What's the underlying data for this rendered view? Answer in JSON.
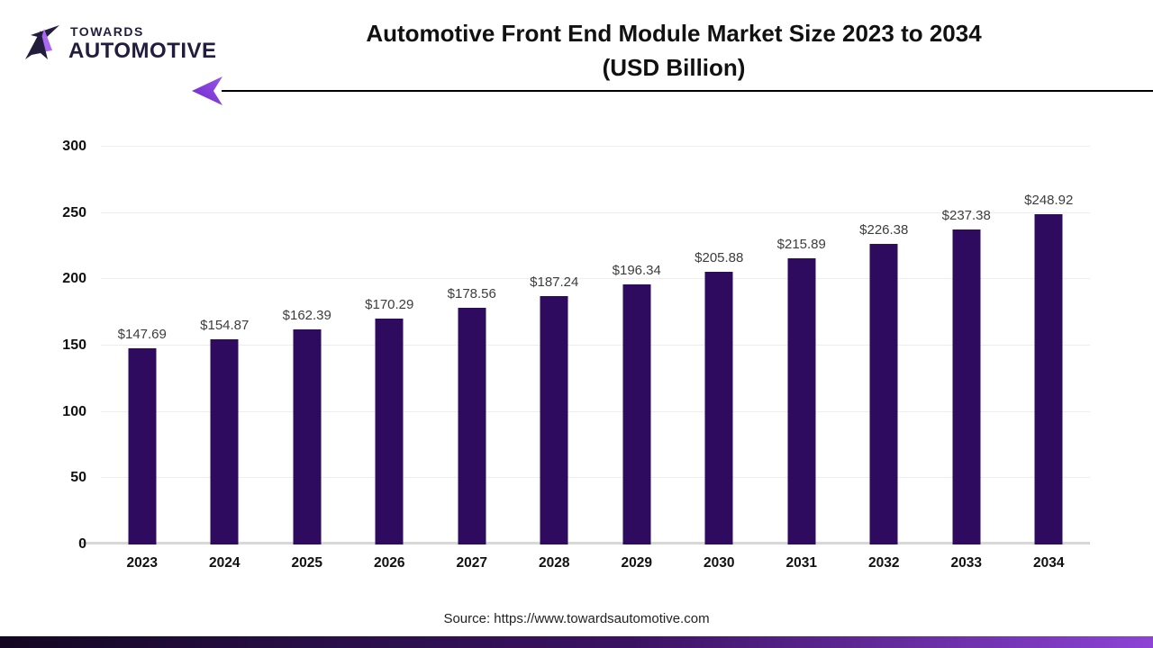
{
  "brand": {
    "name_top": "TOWARDS",
    "name_bottom": "AUTOMOTIVE"
  },
  "header": {
    "title_line1": "Automotive Front End Module Market Size 2023 to 2034",
    "title_line2": "(USD Billion)"
  },
  "chart_data": {
    "type": "bar",
    "title": "Automotive Front End Module Market Size 2023 to 2034 (USD Billion)",
    "categories": [
      "2023",
      "2024",
      "2025",
      "2026",
      "2027",
      "2028",
      "2029",
      "2030",
      "2031",
      "2032",
      "2033",
      "2034"
    ],
    "values": [
      147.69,
      154.87,
      162.39,
      170.29,
      178.56,
      187.24,
      196.34,
      205.88,
      215.89,
      226.38,
      237.38,
      248.92
    ],
    "value_prefix": "$",
    "xlabel": "",
    "ylabel": "",
    "ylim": [
      0,
      300
    ],
    "yticks": [
      0,
      50,
      100,
      150,
      200,
      250,
      300
    ],
    "grid": "horizontal",
    "legend": "none",
    "bar_color": "#2e0b5e"
  },
  "footer": {
    "source": "Source: https://www.towardsautomotive.com"
  },
  "colors": {
    "bar": "#2e0b5e",
    "logo_dark": "#221d3d",
    "logo_accent": "#a868f0",
    "arrow_dark": "#6d28c9",
    "arrow_light": "#9a55e8",
    "footer_gradient_start": "#140722",
    "footer_gradient_end": "#8d43d6",
    "gridline": "#ededed",
    "axis_line": "#d8d8d8",
    "title_text": "#111111",
    "value_label_text": "#3d3d3d"
  }
}
